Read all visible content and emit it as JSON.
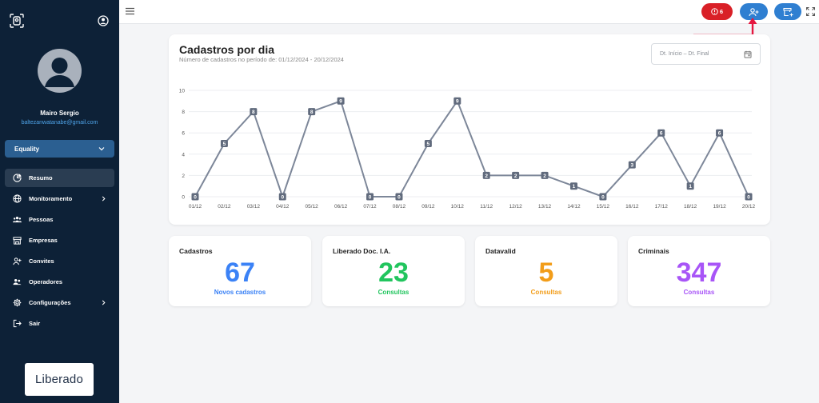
{
  "sidebar": {
    "user": {
      "name": "Mairo Sergio",
      "email": "baltezanwatanabe@gmail.com"
    },
    "company": "Equality",
    "nav": [
      {
        "label": "Resumo",
        "icon": "pie-chart-icon",
        "active": true,
        "submenu": false
      },
      {
        "label": "Monitoramento",
        "icon": "globe-icon",
        "active": false,
        "submenu": true
      },
      {
        "label": "Pessoas",
        "icon": "people-icon",
        "active": false,
        "submenu": false
      },
      {
        "label": "Empresas",
        "icon": "store-icon",
        "active": false,
        "submenu": false
      },
      {
        "label": "Convites",
        "icon": "user-plus-icon",
        "active": false,
        "submenu": false
      },
      {
        "label": "Operadores",
        "icon": "operators-icon",
        "active": false,
        "submenu": false
      },
      {
        "label": "Configurações",
        "icon": "gear-icon",
        "active": false,
        "submenu": true
      },
      {
        "label": "Sair",
        "icon": "logout-icon",
        "active": false,
        "submenu": false
      }
    ],
    "logo": "Liberado"
  },
  "topbar": {
    "alert_count": "6"
  },
  "chart": {
    "title": "Cadastros por dia",
    "subtitle": "Número de cadastros no período de: 01/12/2024 - 20/12/2024",
    "date_placeholder": "Dt. Início – Dt. Final"
  },
  "chart_data": {
    "type": "line",
    "categories": [
      "01/12",
      "02/12",
      "03/12",
      "04/12",
      "05/12",
      "06/12",
      "07/12",
      "08/12",
      "09/12",
      "10/12",
      "11/12",
      "12/12",
      "13/12",
      "14/12",
      "15/12",
      "16/12",
      "17/12",
      "18/12",
      "19/12",
      "20/12"
    ],
    "values": [
      0,
      5,
      8,
      0,
      8,
      9,
      0,
      0,
      5,
      9,
      2,
      2,
      2,
      1,
      0,
      3,
      6,
      1,
      6,
      0
    ],
    "ylim": [
      0,
      10
    ],
    "yticks": [
      0,
      2,
      4,
      6,
      8,
      10
    ],
    "grid": true,
    "line_color": "#7d8799"
  },
  "stats": [
    {
      "title": "Cadastros",
      "value": "67",
      "caption": "Novos cadastros",
      "color": "#3b82f6"
    },
    {
      "title": "Liberado Doc. I.A.",
      "value": "23",
      "caption": "Consultas",
      "color": "#22c55e"
    },
    {
      "title": "Datavalid",
      "value": "5",
      "caption": "Consultas",
      "color": "#f29d1a"
    },
    {
      "title": "Criminais",
      "value": "347",
      "caption": "Consultas",
      "color": "#a855f7"
    }
  ]
}
